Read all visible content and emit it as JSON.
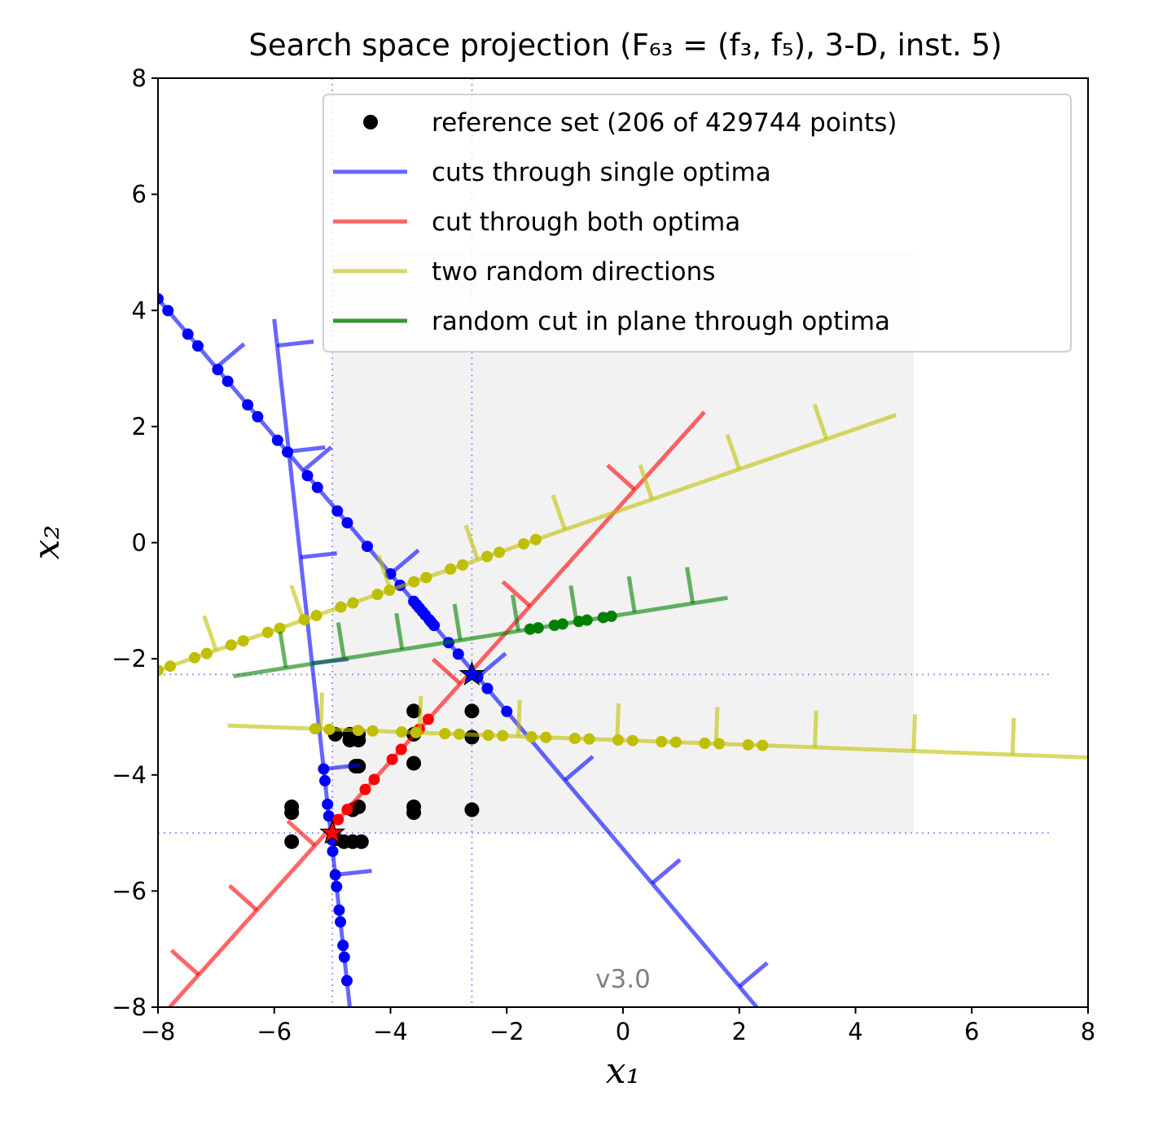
{
  "chart_data": {
    "type": "scatter",
    "title": "Search space projection (F₆₃ = (f₃, f₅), 3-D, inst. 5)",
    "xlabel": "x₁",
    "ylabel": "x₂",
    "xlim": [
      -8,
      8
    ],
    "ylim": [
      -8,
      8
    ],
    "xticks": [
      "−8",
      "−6",
      "−4",
      "−2",
      "0",
      "2",
      "4",
      "6",
      "8"
    ],
    "yticks": [
      "−8",
      "−6",
      "−4",
      "−2",
      "0",
      "2",
      "4",
      "6",
      "8"
    ],
    "version_label": "v3.0",
    "legend_position": "upper-right",
    "legend": [
      {
        "label": "reference set (206 of 429744 points)",
        "marker": "dot",
        "color": "#000000"
      },
      {
        "label": "cuts through single optima",
        "marker": "line",
        "color": "#0000ff"
      },
      {
        "label": "cut through both optima",
        "marker": "line",
        "color": "#ff0000"
      },
      {
        "label": "two random directions",
        "marker": "line",
        "color": "#bfbf00"
      },
      {
        "label": "random cut in plane through optima",
        "marker": "line",
        "color": "#008000"
      }
    ],
    "region_of_interest": {
      "x": [
        -5.0,
        5.0
      ],
      "y": [
        -5.0,
        5.0
      ]
    },
    "optima": [
      {
        "x": -5.0,
        "y": -5.0,
        "color": "#ff0000"
      },
      {
        "x": -2.6,
        "y": -2.27,
        "color": "#0000ff"
      }
    ],
    "guide_lines": {
      "vertical_x": [
        -5.0,
        -2.6
      ],
      "horizontal_y": [
        -5.0,
        -2.27
      ],
      "color": "#8080ff"
    },
    "reference_set": [
      [
        -5.7,
        -4.55
      ],
      [
        -5.7,
        -4.65
      ],
      [
        -5.7,
        -5.15
      ],
      [
        -4.95,
        -3.3
      ],
      [
        -4.7,
        -3.3
      ],
      [
        -4.7,
        -3.4
      ],
      [
        -4.55,
        -3.3
      ],
      [
        -4.55,
        -3.4
      ],
      [
        -4.55,
        -3.85
      ],
      [
        -4.6,
        -3.85
      ],
      [
        -4.55,
        -4.55
      ],
      [
        -4.65,
        -4.6
      ],
      [
        -4.95,
        -5.1
      ],
      [
        -4.8,
        -5.15
      ],
      [
        -4.65,
        -5.15
      ],
      [
        -4.5,
        -5.15
      ],
      [
        -3.6,
        -2.9
      ],
      [
        -3.6,
        -3.3
      ],
      [
        -3.6,
        -3.8
      ],
      [
        -3.6,
        -4.55
      ],
      [
        -3.6,
        -4.65
      ],
      [
        -2.6,
        -2.9
      ],
      [
        -2.6,
        -3.35
      ],
      [
        -2.6,
        -4.6
      ]
    ],
    "series": [
      {
        "name": "cuts through single optima",
        "color": "#0000ff",
        "lines": [
          {
            "from": [
              -8.0,
              4.2
            ],
            "to": [
              2.3,
              -8.0
            ],
            "ticks": [
              -7.0,
              -5.5,
              -4.0,
              -2.5,
              -1.0,
              0.5,
              2.0
            ],
            "points_t": [
              [
                -8.0,
                -4.4
              ],
              [
                -4.0,
                -2.0
              ],
              [
                -3.6,
                -3.2
              ]
            ]
          },
          {
            "from": [
              -6.0,
              3.85
            ],
            "to": [
              -4.7,
              -8.0
            ],
            "ticks": [
              -5.95,
              -5.75,
              -5.55,
              -5.35,
              -5.15,
              -4.95
            ],
            "points_t": [
              [
                -5.15,
                -4.75
              ]
            ]
          }
        ]
      },
      {
        "name": "cut through both optima",
        "color": "#ff0000",
        "lines": [
          {
            "from": [
              -7.8,
              -8.0
            ],
            "to": [
              1.4,
              2.25
            ],
            "ticks": [
              -7.3,
              -6.3,
              -5.3,
              -2.8,
              -1.6,
              0.2
            ],
            "points_t": [
              [
                -4.9,
                -3.35
              ]
            ]
          }
        ]
      },
      {
        "name": "two random directions",
        "color": "#bfbf00",
        "lines": [
          {
            "from": [
              -8.0,
              -2.2
            ],
            "to": [
              4.7,
              2.2
            ],
            "ticks": [
              -7.0,
              -5.5,
              -4.0,
              -2.5,
              -1.0,
              0.5,
              2.0,
              3.5
            ],
            "points_t": [
              [
                -8.0,
                -1.5
              ]
            ]
          },
          {
            "from": [
              -6.8,
              -3.15
            ],
            "to": [
              8.0,
              -3.7
            ],
            "ticks": [
              -5.2,
              -3.5,
              -1.8,
              -0.1,
              1.6,
              3.3,
              5.0,
              6.7
            ],
            "points_t": [
              [
                -5.3,
                2.4
              ]
            ]
          }
        ]
      },
      {
        "name": "random cut in plane through optima",
        "color": "#008000",
        "lines": [
          {
            "from": [
              -6.7,
              -2.3
            ],
            "to": [
              1.8,
              -0.95
            ],
            "ticks": [
              -5.8,
              -4.8,
              -3.8,
              -2.8,
              -1.8,
              -0.8,
              0.2,
              1.2
            ],
            "points_t": [
              [
                -1.6,
                -0.2
              ]
            ]
          }
        ]
      }
    ]
  }
}
